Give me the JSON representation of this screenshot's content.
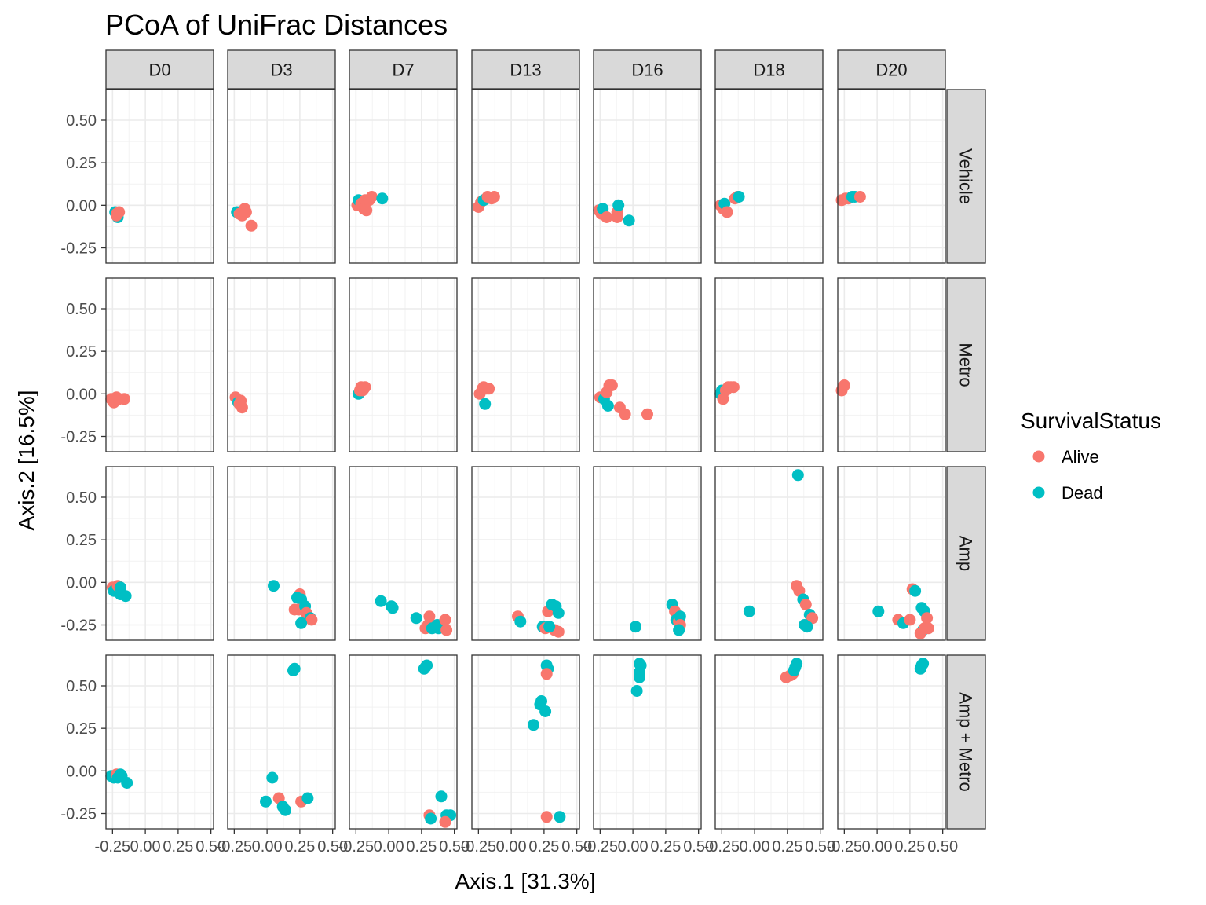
{
  "chart_data": {
    "type": "scatter",
    "title": "PCoA of UniFrac Distances",
    "xlabel": "Axis.1   [31.3%]",
    "ylabel": "Axis.2   [16.5%]",
    "xlim": [
      -0.3,
      0.52
    ],
    "ylim": [
      -0.34,
      0.68
    ],
    "x_ticks": [
      -0.25,
      0.0,
      0.25,
      0.5
    ],
    "x_tick_labels": [
      "-0.25",
      "0.00",
      "0.25",
      "0.50"
    ],
    "y_ticks": [
      -0.25,
      0.0,
      0.25,
      0.5
    ],
    "y_tick_labels": [
      "-0.25",
      "0.00",
      "0.25",
      "0.50"
    ],
    "grid": true,
    "facet_columns": [
      "D0",
      "D3",
      "D7",
      "D13",
      "D16",
      "D18",
      "D20"
    ],
    "facet_rows": [
      "Vehicle",
      "Metro",
      "Amp",
      "Amp + Metro"
    ],
    "legend": {
      "title": "SurvivalStatus",
      "position": "right",
      "items": [
        {
          "label": "Alive",
          "color": "#F8766D"
        },
        {
          "label": "Dead",
          "color": "#00BFC4"
        }
      ]
    },
    "panels": [
      {
        "row": 0,
        "col": 0,
        "points": [
          [
            -0.23,
            -0.04,
            1
          ],
          [
            -0.22,
            -0.05,
            0
          ],
          [
            -0.21,
            -0.07,
            1
          ],
          [
            -0.2,
            -0.04,
            0
          ],
          [
            -0.22,
            -0.06,
            0
          ]
        ]
      },
      {
        "row": 0,
        "col": 1,
        "points": [
          [
            -0.23,
            -0.04,
            1
          ],
          [
            -0.21,
            -0.05,
            0
          ],
          [
            -0.19,
            -0.06,
            0
          ],
          [
            -0.17,
            -0.02,
            0
          ],
          [
            -0.16,
            -0.04,
            0
          ],
          [
            -0.12,
            -0.12,
            0
          ]
        ]
      },
      {
        "row": 0,
        "col": 2,
        "points": [
          [
            -0.24,
            0.0,
            0
          ],
          [
            -0.23,
            0.03,
            1
          ],
          [
            -0.21,
            0.01,
            0
          ],
          [
            -0.19,
            -0.02,
            0
          ],
          [
            -0.18,
            0.03,
            0
          ],
          [
            -0.17,
            -0.03,
            0
          ],
          [
            -0.15,
            0.03,
            0
          ],
          [
            -0.13,
            0.05,
            0
          ],
          [
            -0.05,
            0.04,
            1
          ]
        ]
      },
      {
        "row": 0,
        "col": 3,
        "points": [
          [
            -0.25,
            -0.01,
            0
          ],
          [
            -0.23,
            0.02,
            0
          ],
          [
            -0.21,
            0.03,
            1
          ],
          [
            -0.19,
            0.04,
            1
          ],
          [
            -0.18,
            0.05,
            0
          ],
          [
            -0.15,
            0.04,
            0
          ],
          [
            -0.13,
            0.05,
            0
          ]
        ]
      },
      {
        "row": 0,
        "col": 4,
        "points": [
          [
            -0.26,
            -0.03,
            0
          ],
          [
            -0.24,
            -0.05,
            0
          ],
          [
            -0.23,
            -0.02,
            1
          ],
          [
            -0.2,
            -0.07,
            0
          ],
          [
            -0.12,
            -0.04,
            0
          ],
          [
            -0.12,
            -0.07,
            0
          ],
          [
            -0.11,
            0.0,
            1
          ],
          [
            -0.03,
            -0.09,
            1
          ]
        ]
      },
      {
        "row": 0,
        "col": 5,
        "points": [
          [
            -0.26,
            0.0,
            0
          ],
          [
            -0.24,
            -0.02,
            0
          ],
          [
            -0.23,
            0.01,
            1
          ],
          [
            -0.21,
            -0.04,
            0
          ],
          [
            -0.15,
            0.04,
            0
          ],
          [
            -0.13,
            0.05,
            0
          ],
          [
            -0.12,
            0.05,
            1
          ]
        ]
      },
      {
        "row": 0,
        "col": 6,
        "points": [
          [
            -0.27,
            0.03,
            0
          ],
          [
            -0.24,
            0.04,
            0
          ],
          [
            -0.22,
            0.04,
            0
          ],
          [
            -0.19,
            0.05,
            1
          ],
          [
            -0.17,
            0.05,
            1
          ],
          [
            -0.13,
            0.05,
            0
          ]
        ]
      },
      {
        "row": 1,
        "col": 0,
        "points": [
          [
            -0.26,
            -0.03,
            0
          ],
          [
            -0.24,
            -0.05,
            0
          ],
          [
            -0.22,
            -0.02,
            0
          ],
          [
            -0.2,
            -0.03,
            0
          ],
          [
            -0.16,
            -0.03,
            0
          ]
        ]
      },
      {
        "row": 1,
        "col": 1,
        "points": [
          [
            -0.24,
            -0.02,
            0
          ],
          [
            -0.22,
            -0.05,
            1
          ],
          [
            -0.2,
            -0.04,
            0
          ],
          [
            -0.19,
            -0.08,
            0
          ],
          [
            -0.21,
            -0.06,
            0
          ]
        ]
      },
      {
        "row": 1,
        "col": 2,
        "points": [
          [
            -0.23,
            0.0,
            1
          ],
          [
            -0.22,
            0.02,
            0
          ],
          [
            -0.21,
            0.04,
            0
          ],
          [
            -0.2,
            0.02,
            0
          ],
          [
            -0.19,
            0.03,
            0
          ],
          [
            -0.18,
            0.04,
            0
          ]
        ]
      },
      {
        "row": 1,
        "col": 3,
        "points": [
          [
            -0.24,
            0.0,
            0
          ],
          [
            -0.22,
            0.03,
            0
          ],
          [
            -0.21,
            0.04,
            0
          ],
          [
            -0.19,
            0.03,
            0
          ],
          [
            -0.17,
            0.03,
            0
          ],
          [
            -0.2,
            -0.06,
            1
          ]
        ]
      },
      {
        "row": 1,
        "col": 4,
        "points": [
          [
            -0.25,
            -0.02,
            0
          ],
          [
            -0.22,
            -0.03,
            1
          ],
          [
            -0.2,
            0.01,
            0
          ],
          [
            -0.19,
            -0.07,
            1
          ],
          [
            -0.18,
            0.05,
            0
          ],
          [
            -0.16,
            0.05,
            0
          ],
          [
            -0.1,
            -0.08,
            0
          ],
          [
            -0.06,
            -0.12,
            0
          ],
          [
            0.11,
            -0.12,
            0
          ]
        ]
      },
      {
        "row": 1,
        "col": 5,
        "points": [
          [
            -0.26,
            0.0,
            1
          ],
          [
            -0.25,
            0.02,
            1
          ],
          [
            -0.24,
            -0.03,
            0
          ],
          [
            -0.22,
            0.02,
            0
          ],
          [
            -0.2,
            0.04,
            0
          ],
          [
            -0.18,
            0.04,
            0
          ],
          [
            -0.16,
            0.04,
            0
          ]
        ]
      },
      {
        "row": 1,
        "col": 6,
        "points": [
          [
            -0.27,
            0.02,
            0
          ],
          [
            -0.26,
            0.04,
            0
          ],
          [
            -0.25,
            0.05,
            0
          ]
        ]
      },
      {
        "row": 2,
        "col": 0,
        "points": [
          [
            -0.25,
            -0.03,
            0
          ],
          [
            -0.24,
            -0.05,
            1
          ],
          [
            -0.22,
            -0.04,
            1
          ],
          [
            -0.21,
            -0.02,
            0
          ],
          [
            -0.19,
            -0.03,
            1
          ],
          [
            -0.19,
            -0.07,
            1
          ],
          [
            -0.15,
            -0.08,
            1
          ]
        ]
      },
      {
        "row": 2,
        "col": 1,
        "points": [
          [
            0.05,
            -0.02,
            1
          ],
          [
            0.25,
            -0.07,
            0
          ],
          [
            0.26,
            -0.1,
            1
          ],
          [
            0.23,
            -0.09,
            1
          ],
          [
            0.21,
            -0.16,
            0
          ],
          [
            0.24,
            -0.16,
            0
          ],
          [
            0.29,
            -0.14,
            1
          ],
          [
            0.3,
            -0.18,
            0
          ],
          [
            0.31,
            -0.2,
            0
          ],
          [
            0.33,
            -0.21,
            1
          ],
          [
            0.34,
            -0.22,
            0
          ],
          [
            0.26,
            -0.24,
            1
          ]
        ]
      },
      {
        "row": 2,
        "col": 2,
        "points": [
          [
            -0.06,
            -0.11,
            1
          ],
          [
            0.02,
            -0.14,
            1
          ],
          [
            0.03,
            -0.15,
            1
          ],
          [
            0.21,
            -0.21,
            1
          ],
          [
            0.31,
            -0.2,
            0
          ],
          [
            0.3,
            -0.25,
            0
          ],
          [
            0.28,
            -0.27,
            0
          ],
          [
            0.33,
            -0.27,
            1
          ],
          [
            0.37,
            -0.25,
            1
          ],
          [
            0.38,
            -0.27,
            1
          ],
          [
            0.43,
            -0.22,
            0
          ],
          [
            0.44,
            -0.28,
            0
          ]
        ]
      },
      {
        "row": 2,
        "col": 3,
        "points": [
          [
            0.05,
            -0.2,
            0
          ],
          [
            0.07,
            -0.23,
            1
          ],
          [
            0.24,
            -0.26,
            1
          ],
          [
            0.26,
            -0.27,
            0
          ],
          [
            0.28,
            -0.17,
            0
          ],
          [
            0.31,
            -0.13,
            1
          ],
          [
            0.34,
            -0.14,
            1
          ],
          [
            0.36,
            -0.18,
            1
          ],
          [
            0.33,
            -0.28,
            0
          ],
          [
            0.36,
            -0.29,
            0
          ],
          [
            0.29,
            -0.26,
            1
          ]
        ]
      },
      {
        "row": 2,
        "col": 4,
        "points": [
          [
            0.02,
            -0.26,
            1
          ],
          [
            0.3,
            -0.13,
            1
          ],
          [
            0.32,
            -0.17,
            0
          ],
          [
            0.33,
            -0.22,
            1
          ],
          [
            0.35,
            -0.23,
            0
          ],
          [
            0.36,
            -0.2,
            1
          ],
          [
            0.36,
            -0.25,
            0
          ],
          [
            0.35,
            -0.28,
            1
          ]
        ]
      },
      {
        "row": 2,
        "col": 5,
        "points": [
          [
            -0.04,
            -0.17,
            1
          ],
          [
            0.33,
            0.63,
            1
          ],
          [
            0.32,
            -0.02,
            0
          ],
          [
            0.34,
            -0.05,
            0
          ],
          [
            0.37,
            -0.1,
            1
          ],
          [
            0.39,
            -0.13,
            0
          ],
          [
            0.42,
            -0.19,
            1
          ],
          [
            0.44,
            -0.21,
            0
          ],
          [
            0.38,
            -0.25,
            1
          ],
          [
            0.4,
            -0.26,
            1
          ]
        ]
      },
      {
        "row": 2,
        "col": 6,
        "points": [
          [
            0.01,
            -0.17,
            1
          ],
          [
            0.16,
            -0.22,
            0
          ],
          [
            0.2,
            -0.24,
            1
          ],
          [
            0.25,
            -0.22,
            0
          ],
          [
            0.27,
            -0.04,
            0
          ],
          [
            0.29,
            -0.05,
            1
          ],
          [
            0.34,
            -0.15,
            1
          ],
          [
            0.36,
            -0.17,
            1
          ],
          [
            0.38,
            -0.21,
            0
          ],
          [
            0.35,
            -0.28,
            1
          ],
          [
            0.33,
            -0.3,
            0
          ],
          [
            0.36,
            -0.27,
            0
          ],
          [
            0.39,
            -0.27,
            0
          ]
        ]
      },
      {
        "row": 3,
        "col": 0,
        "points": [
          [
            -0.26,
            -0.03,
            1
          ],
          [
            -0.24,
            -0.04,
            1
          ],
          [
            -0.22,
            -0.02,
            0
          ],
          [
            -0.21,
            -0.04,
            1
          ],
          [
            -0.19,
            -0.02,
            1
          ],
          [
            -0.18,
            -0.03,
            1
          ],
          [
            -0.14,
            -0.07,
            1
          ]
        ]
      },
      {
        "row": 3,
        "col": 1,
        "points": [
          [
            0.2,
            0.59,
            1
          ],
          [
            0.21,
            0.6,
            1
          ],
          [
            0.09,
            -0.16,
            0
          ],
          [
            0.04,
            -0.04,
            1
          ],
          [
            -0.01,
            -0.18,
            1
          ],
          [
            0.12,
            -0.21,
            1
          ],
          [
            0.14,
            -0.23,
            1
          ],
          [
            0.26,
            -0.18,
            0
          ],
          [
            0.31,
            -0.16,
            1
          ]
        ]
      },
      {
        "row": 3,
        "col": 2,
        "points": [
          [
            0.27,
            0.6,
            1
          ],
          [
            0.29,
            0.62,
            1
          ],
          [
            0.28,
            0.61,
            1
          ],
          [
            0.4,
            -0.15,
            1
          ],
          [
            0.44,
            -0.26,
            1
          ],
          [
            0.47,
            -0.26,
            1
          ],
          [
            0.31,
            -0.26,
            0
          ],
          [
            0.32,
            -0.28,
            1
          ],
          [
            0.43,
            -0.3,
            0
          ]
        ]
      },
      {
        "row": 3,
        "col": 3,
        "points": [
          [
            0.27,
            0.62,
            1
          ],
          [
            0.28,
            0.6,
            1
          ],
          [
            0.27,
            0.57,
            0
          ],
          [
            0.23,
            0.41,
            1
          ],
          [
            0.22,
            0.39,
            1
          ],
          [
            0.26,
            0.35,
            1
          ],
          [
            0.17,
            0.27,
            1
          ],
          [
            0.27,
            -0.27,
            0
          ],
          [
            0.37,
            -0.27,
            1
          ]
        ]
      },
      {
        "row": 3,
        "col": 4,
        "points": [
          [
            0.05,
            0.63,
            1
          ],
          [
            0.06,
            0.62,
            1
          ],
          [
            0.05,
            0.58,
            1
          ],
          [
            0.05,
            0.55,
            1
          ],
          [
            0.03,
            0.47,
            1
          ]
        ]
      },
      {
        "row": 3,
        "col": 5,
        "points": [
          [
            0.24,
            0.55,
            0
          ],
          [
            0.27,
            0.56,
            0
          ],
          [
            0.29,
            0.57,
            0
          ],
          [
            0.3,
            0.59,
            1
          ],
          [
            0.31,
            0.61,
            1
          ],
          [
            0.32,
            0.63,
            1
          ]
        ]
      },
      {
        "row": 3,
        "col": 6,
        "points": [
          [
            0.33,
            0.6,
            1
          ],
          [
            0.34,
            0.62,
            1
          ],
          [
            0.35,
            0.63,
            1
          ]
        ]
      }
    ]
  }
}
